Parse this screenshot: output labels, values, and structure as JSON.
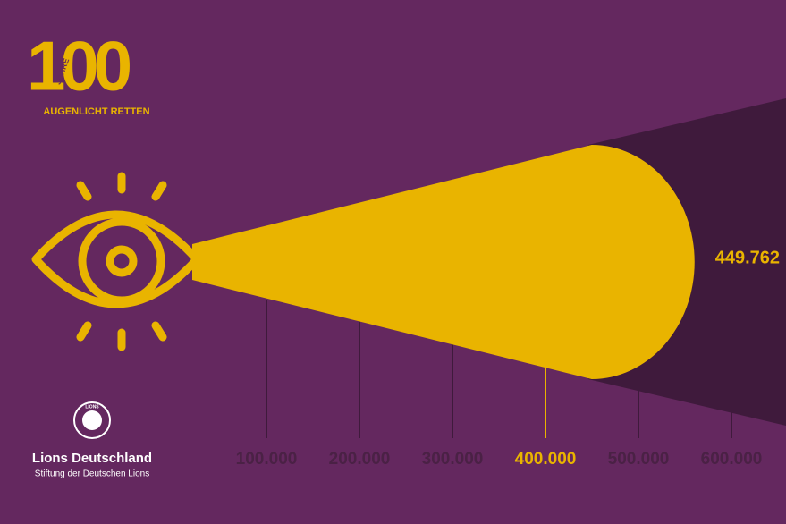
{
  "logo": {
    "number": "100",
    "years": "JAHRE",
    "tagline": "AUGENLICHT RETTEN"
  },
  "org": {
    "emblem": "LIONS",
    "name": "Lions Deutschland",
    "subtitle": "Stiftung der Deutschen Lions"
  },
  "chart_data": {
    "type": "beam",
    "values": [
      449762
    ],
    "value_labels": [
      "449.762"
    ],
    "color": "#e9b400",
    "xlim": [
      0,
      650000
    ],
    "xticks": [
      {
        "value": 100000,
        "label": "100.000"
      },
      {
        "value": 200000,
        "label": "200.000"
      },
      {
        "value": 300000,
        "label": "300.000"
      },
      {
        "value": 400000,
        "label": "400.000"
      },
      {
        "value": 500000,
        "label": "500.000"
      },
      {
        "value": 600000,
        "label": "600.000"
      }
    ]
  }
}
